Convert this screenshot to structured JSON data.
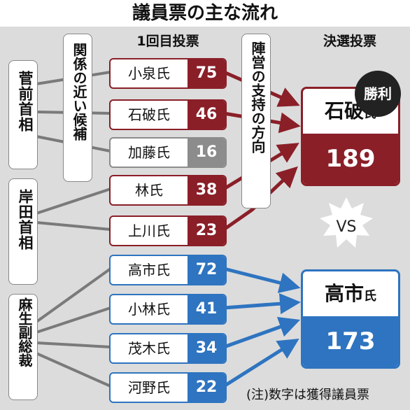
{
  "title": "議員票の主な流れ",
  "headers": {
    "first_round": "1回目投票",
    "runoff": "決選投票"
  },
  "labels": {
    "related_candidates": "関係の近い候補",
    "camp_support": "陣営の支持の方向"
  },
  "factions": [
    "菅前首相",
    "岸田首相",
    "麻生副総裁"
  ],
  "candidates": [
    {
      "name": "小泉氏",
      "votes": "75",
      "color": "#8a1f28"
    },
    {
      "name": "石破氏",
      "votes": "46",
      "color": "#8a1f28"
    },
    {
      "name": "加藤氏",
      "votes": "16",
      "color": "#8c8c8c"
    },
    {
      "name": "林氏",
      "votes": "38",
      "color": "#8a1f28"
    },
    {
      "name": "上川氏",
      "votes": "23",
      "color": "#8a1f28"
    },
    {
      "name": "高市氏",
      "votes": "72",
      "color": "#2e74c0"
    },
    {
      "name": "小林氏",
      "votes": "41",
      "color": "#2e74c0"
    },
    {
      "name": "茂木氏",
      "votes": "34",
      "color": "#2e74c0"
    },
    {
      "name": "河野氏",
      "votes": "22",
      "color": "#2e74c0"
    }
  ],
  "finalists": [
    {
      "name": "石破",
      "suffix": "氏",
      "votes": "189",
      "color": "#8a1f28"
    },
    {
      "name": "高市",
      "suffix": "氏",
      "votes": "173",
      "color": "#2e74c0"
    }
  ],
  "winner_badge": "勝利",
  "vs": "VS",
  "note": "(注)数字は獲得議員票"
}
